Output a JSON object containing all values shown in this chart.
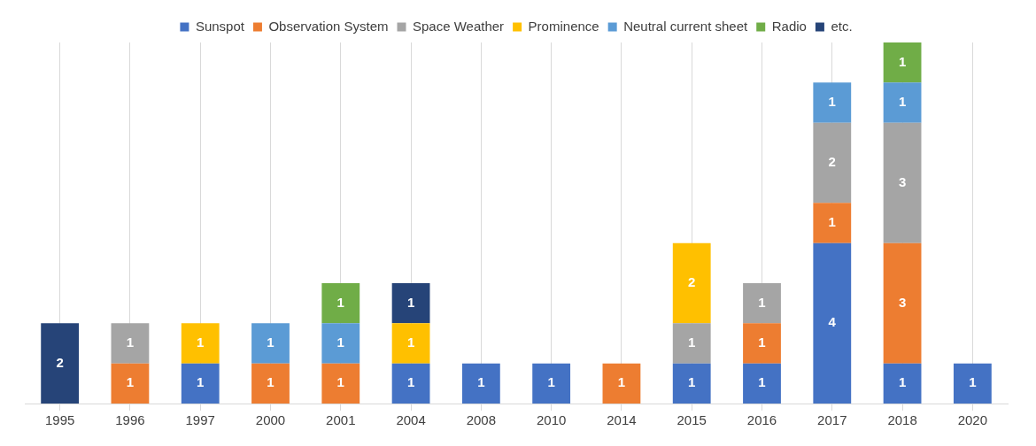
{
  "chart_data": {
    "type": "bar",
    "stacked": true,
    "data_labels": true,
    "legend": "top",
    "grid": "x",
    "categories": [
      "1995",
      "1996",
      "1997",
      "2000",
      "2001",
      "2004",
      "2008",
      "2010",
      "2014",
      "2015",
      "2016",
      "2017",
      "2018",
      "2020"
    ],
    "series": [
      {
        "name": "Sunspot",
        "color": "#4472c4",
        "values": [
          null,
          null,
          1,
          null,
          null,
          1,
          1,
          1,
          null,
          1,
          1,
          4,
          1,
          1
        ]
      },
      {
        "name": "Observation System",
        "color": "#ed7d31",
        "values": [
          null,
          1,
          null,
          1,
          1,
          null,
          null,
          null,
          1,
          null,
          1,
          1,
          3,
          null
        ]
      },
      {
        "name": "Space Weather",
        "color": "#a5a5a5",
        "values": [
          null,
          1,
          null,
          null,
          null,
          null,
          null,
          null,
          null,
          1,
          1,
          2,
          3,
          null
        ]
      },
      {
        "name": "Prominence",
        "color": "#ffc000",
        "values": [
          null,
          null,
          1,
          null,
          null,
          1,
          null,
          null,
          null,
          2,
          null,
          null,
          null,
          null
        ]
      },
      {
        "name": "Neutral current sheet",
        "color": "#5b9bd5",
        "values": [
          null,
          null,
          null,
          1,
          1,
          null,
          null,
          null,
          null,
          null,
          null,
          1,
          1,
          null
        ]
      },
      {
        "name": "Radio",
        "color": "#70ad47",
        "values": [
          null,
          null,
          null,
          null,
          1,
          null,
          null,
          null,
          null,
          null,
          null,
          null,
          1,
          null
        ]
      },
      {
        "name": "etc.",
        "color": "#264478",
        "values": [
          2,
          null,
          null,
          null,
          null,
          1,
          null,
          null,
          null,
          null,
          null,
          null,
          null,
          null
        ]
      }
    ]
  }
}
